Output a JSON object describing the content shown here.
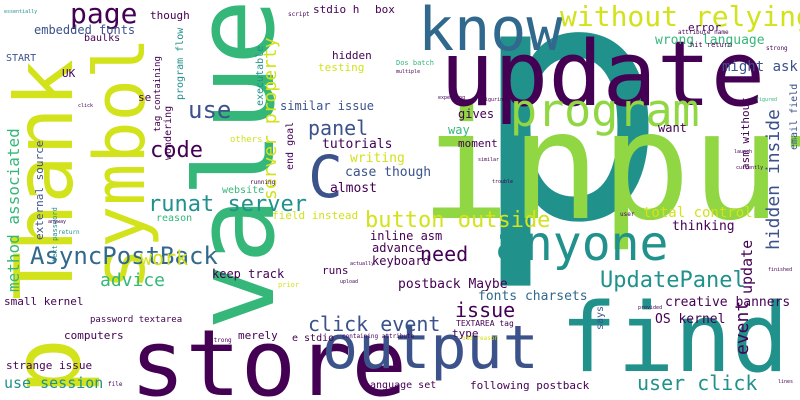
{
  "palette": {
    "purple": "#440154",
    "indigo": "#3b528b",
    "blue": "#31688e",
    "teal": "#21918c",
    "green": "#35b779",
    "lime": "#90d743",
    "yellow": "#d2e21b"
  },
  "words": [
    {
      "text": "p",
      "color": "#21918c"
    },
    {
      "text": "input",
      "color": "#90d743"
    },
    {
      "text": "value",
      "color": "#35b779"
    },
    {
      "text": "update",
      "color": "#440154"
    },
    {
      "text": "store",
      "color": "#440154"
    },
    {
      "text": "find",
      "color": "#21918c"
    },
    {
      "text": "Thank",
      "color": "#d2e21b"
    },
    {
      "text": "know",
      "color": "#31688e"
    },
    {
      "text": "p",
      "color": "#d2e21b"
    },
    {
      "text": "output",
      "color": "#3b528b"
    },
    {
      "text": "symbol",
      "color": "#d2e21b"
    },
    {
      "text": "program",
      "color": "#90d743"
    },
    {
      "text": "anyone",
      "color": "#21918c"
    },
    {
      "text": "C",
      "color": "#3b528b"
    },
    {
      "text": "without relying",
      "color": "#d2e21b"
    },
    {
      "text": "page",
      "color": "#440154"
    },
    {
      "text": "runat server",
      "color": "#21918c"
    },
    {
      "text": "AsyncPostBack",
      "color": "#31688e"
    },
    {
      "text": "button outside",
      "color": "#d2e21b"
    },
    {
      "text": "click event",
      "color": "#3b528b"
    },
    {
      "text": "UpdatePanel",
      "color": "#21918c"
    },
    {
      "text": "code",
      "color": "#440154"
    },
    {
      "text": "use",
      "color": "#3b528b"
    },
    {
      "text": "panel",
      "color": "#3b528b"
    },
    {
      "text": "work",
      "color": "#d2e21b"
    },
    {
      "text": "advice",
      "color": "#35b779"
    },
    {
      "text": "need",
      "color": "#440154"
    },
    {
      "text": "issue",
      "color": "#440154"
    },
    {
      "text": "user click",
      "color": "#21918c"
    },
    {
      "text": "use session",
      "color": "#21918c"
    },
    {
      "text": "hidden inside",
      "color": "#3b528b"
    },
    {
      "text": "server property",
      "color": "#d2e21b"
    },
    {
      "text": "method associated",
      "color": "#35b779"
    },
    {
      "text": "event",
      "color": "#440154"
    },
    {
      "text": "update",
      "color": "#440154"
    },
    {
      "text": "might ask",
      "color": "#3b528b"
    },
    {
      "text": "embedded fonts",
      "color": "#3b528b"
    },
    {
      "text": "wrong language",
      "color": "#35b779"
    },
    {
      "text": "total control",
      "color": "#d2e21b"
    },
    {
      "text": "creative banners",
      "color": "#440154"
    },
    {
      "text": "OS kernel",
      "color": "#440154"
    },
    {
      "text": "postback Maybe",
      "color": "#440154"
    },
    {
      "text": "fonts charsets",
      "color": "#31688e"
    },
    {
      "text": "keyboard",
      "color": "#440154"
    },
    {
      "text": "keep track",
      "color": "#440154"
    },
    {
      "text": "runs",
      "color": "#440154"
    },
    {
      "text": "inline asm",
      "color": "#440154"
    },
    {
      "text": "advance",
      "color": "#440154"
    },
    {
      "text": "writing",
      "color": "#d2e21b"
    },
    {
      "text": "case though",
      "color": "#3b528b"
    },
    {
      "text": "almost",
      "color": "#440154"
    },
    {
      "text": "tutorials",
      "color": "#440154"
    },
    {
      "text": "gives",
      "color": "#440154"
    },
    {
      "text": "moment",
      "color": "#440154"
    },
    {
      "text": "want",
      "color": "#440154"
    },
    {
      "text": "way",
      "color": "#35b779"
    },
    {
      "text": "thinking",
      "color": "#440154"
    },
    {
      "text": "similar issue",
      "color": "#3b528b"
    },
    {
      "text": "hidden",
      "color": "#440154"
    },
    {
      "text": "testing",
      "color": "#d2e21b"
    },
    {
      "text": "stdio h",
      "color": "#440154"
    },
    {
      "text": "box",
      "color": "#440154"
    },
    {
      "text": "error",
      "color": "#440154"
    },
    {
      "text": "though",
      "color": "#440154"
    },
    {
      "text": "baulks",
      "color": "#440154"
    },
    {
      "text": "START",
      "color": "#3b528b"
    },
    {
      "text": "UK",
      "color": "#440154"
    },
    {
      "text": "se",
      "color": "#440154"
    },
    {
      "text": "external source",
      "color": "#3b528b"
    },
    {
      "text": "small kernel",
      "color": "#440154"
    },
    {
      "text": "strange issue",
      "color": "#440154"
    },
    {
      "text": "computers",
      "color": "#440154"
    },
    {
      "text": "password textarea",
      "color": "#440154"
    },
    {
      "text": "merely",
      "color": "#440154"
    },
    {
      "text": "e stdio",
      "color": "#440154"
    },
    {
      "text": "language set",
      "color": "#440154"
    },
    {
      "text": "following postback",
      "color": "#440154"
    },
    {
      "text": "type",
      "color": "#440154"
    },
    {
      "text": "TEXTAREA tag",
      "color": "#440154"
    },
    {
      "text": "says",
      "color": "#3b528b"
    },
    {
      "text": "field instead",
      "color": "#d2e21b"
    },
    {
      "text": "website",
      "color": "#35b779"
    },
    {
      "text": "reason",
      "color": "#35b779"
    },
    {
      "text": "asm without",
      "color": "#440154"
    },
    {
      "text": "email field",
      "color": "#3b528b"
    },
    {
      "text": "executable",
      "color": "#21918c"
    },
    {
      "text": "program flow",
      "color": "#21918c"
    },
    {
      "text": "tag containing",
      "color": "#440154"
    },
    {
      "text": "wondering",
      "color": "#440154"
    },
    {
      "text": "end goal",
      "color": "#440154"
    },
    {
      "text": "others",
      "color": "#d2e21b"
    },
    {
      "text": "hit return",
      "color": "#440154"
    },
    {
      "text": "attribute name",
      "color": "#440154"
    },
    {
      "text": "strong",
      "color": "#440154"
    },
    {
      "text": "Dos batch",
      "color": "#35b779"
    },
    {
      "text": "text password",
      "color": "#21918c"
    },
    {
      "text": "running",
      "color": "#440154"
    },
    {
      "text": "prior",
      "color": "#d2e21b"
    },
    {
      "text": "odd reason",
      "color": "#d2e21b"
    },
    {
      "text": "containing attribute",
      "color": "#440154"
    },
    {
      "text": "strong",
      "color": "#440154"
    },
    {
      "text": "file",
      "color": "#440154"
    },
    {
      "text": "lines",
      "color": "#440154"
    },
    {
      "text": "figured",
      "color": "#35b779"
    },
    {
      "text": "essentially",
      "color": "#21918c"
    },
    {
      "text": "return",
      "color": "#21918c"
    },
    {
      "text": "expecting",
      "color": "#440154"
    },
    {
      "text": "figuring",
      "color": "#440154"
    },
    {
      "text": "multiple",
      "color": "#440154"
    },
    {
      "text": "actually",
      "color": "#440154"
    },
    {
      "text": "upload",
      "color": "#440154"
    },
    {
      "text": "user",
      "color": "#440154"
    },
    {
      "text": "finished",
      "color": "#440154"
    },
    {
      "text": "provided",
      "color": "#440154"
    },
    {
      "text": "launch",
      "color": "#440154"
    },
    {
      "text": "currently",
      "color": "#440154"
    },
    {
      "text": "trouble",
      "color": "#440154"
    },
    {
      "text": "similar",
      "color": "#440154"
    },
    {
      "text": "anyway",
      "color": "#440154"
    },
    {
      "text": "script",
      "color": "#440154"
    },
    {
      "text": "click",
      "color": "#440154"
    }
  ]
}
